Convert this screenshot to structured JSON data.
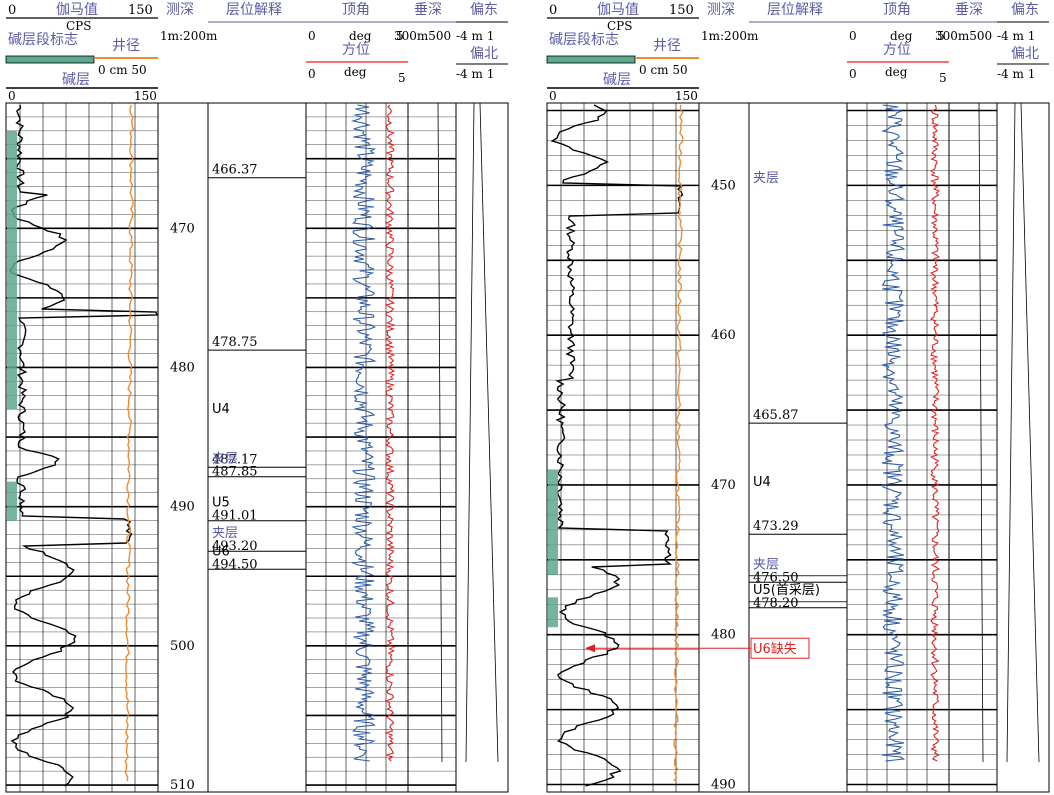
{
  "panels": [
    {
      "id": "left",
      "depth_range": [
        461.0,
        510.5
      ],
      "header": {
        "gamma_title": "伽马值",
        "gamma_unit": "CPS",
        "gamma_min": "0",
        "gamma_max": "150",
        "alkali_flag_title": "碱层段标志",
        "caliper_title": "井径",
        "caliper_unit": "0  cm  50",
        "alkali_title": "碱层",
        "alkali_min": "0",
        "alkali_max": "150",
        "depth_title": "测深",
        "depth_scale": "1m:200m",
        "interp_title": "层位解释",
        "incl_title": "顶角",
        "incl_min": "0",
        "incl_unit": "deg",
        "incl_max": "5",
        "azi_title": "方位",
        "azi_min": "0",
        "azi_unit": "deg",
        "azi_max": "5",
        "tvd_title": "垂深",
        "tvd_scale": "300m500",
        "east_title": "偏东",
        "east_scale": "-4  m  1",
        "north_title": "偏北",
        "north_scale": "-4  m  1"
      },
      "depth_labels": [
        "470",
        "480",
        "490",
        "500",
        "510"
      ],
      "interpretation": [
        {
          "label": "466.37",
          "depth": 466.37
        },
        {
          "label": "478.75",
          "depth": 478.75
        },
        {
          "label": "U4",
          "depth": 483.0,
          "text_only": true
        },
        {
          "label": "487.17",
          "depth": 487.17
        },
        {
          "label": "夹层",
          "depth": 487.85,
          "sub": "487.85",
          "color": "#5b5ba8"
        },
        {
          "label": "U5",
          "depth": 491.01,
          "sub": "491.01"
        },
        {
          "label": "夹层",
          "depth": 493.2,
          "sub": "493.20",
          "color": "#5b5ba8"
        },
        {
          "label": "U6",
          "depth": 494.5,
          "sub": "494.50"
        }
      ]
    },
    {
      "id": "right",
      "depth_range": [
        444.5,
        490.5
      ],
      "header": {
        "gamma_title": "伽马值",
        "gamma_unit": "CPS",
        "gamma_min": "0",
        "gamma_max": "150",
        "alkali_flag_title": "碱层段标志",
        "caliper_title": "井径",
        "caliper_unit": "0  cm  50",
        "alkali_title": "碱层",
        "alkali_min": "0",
        "alkali_max": "150",
        "depth_title": "测深",
        "depth_scale": "1m:200m",
        "interp_title": "层位解释",
        "incl_title": "顶角",
        "incl_min": "0",
        "incl_unit": "deg",
        "incl_max": "5",
        "azi_title": "方位",
        "azi_min": "0",
        "azi_unit": "deg",
        "azi_max": "5",
        "tvd_title": "垂深",
        "tvd_scale": "300m500",
        "east_title": "偏东",
        "east_scale": "-4  m  1",
        "north_title": "偏北",
        "north_scale": "-4  m  1"
      },
      "depth_labels": [
        "450",
        "460",
        "470",
        "480",
        "490"
      ],
      "interpretation": [
        {
          "label": "夹层",
          "depth": 449.5,
          "text_only": true,
          "color": "#5b5ba8"
        },
        {
          "label": "465.87",
          "depth": 465.87
        },
        {
          "label": "U4",
          "depth": 469.8,
          "text_only": true
        },
        {
          "label": "473.29",
          "depth": 473.29
        },
        {
          "label": "夹层",
          "depth": 476.5,
          "sub": "476.50",
          "color": "#5b5ba8"
        },
        {
          "label": "U5(首采层)",
          "depth": 478.2,
          "sub": "478.20",
          "boxed": true
        },
        {
          "label": "U6缺失",
          "depth": 480.9,
          "text_only": true,
          "boxed_red": true
        }
      ]
    }
  ],
  "colors": {
    "gamma": "#000000",
    "caliper": "#f08a30",
    "inclination": "#2a5aa8",
    "azimuth": "#e02020",
    "alkali_fill": "#5aa890",
    "header_text": "#5b5ba8",
    "annotation": "#e02020"
  }
}
